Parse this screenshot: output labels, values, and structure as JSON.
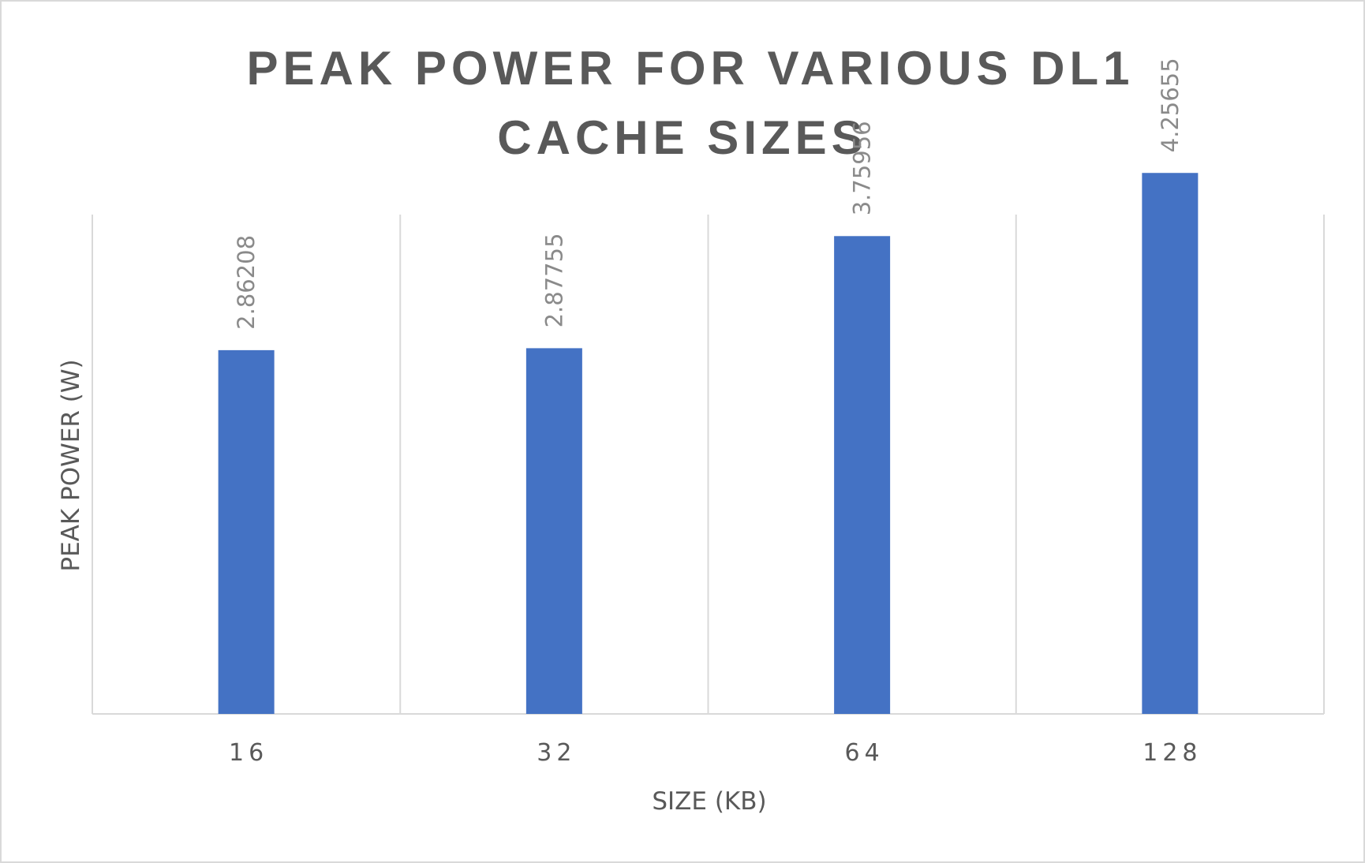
{
  "chart_data": {
    "type": "bar",
    "title_lines": [
      "PEAK POWER FOR VARIOUS DL1",
      "CACHE SIZES"
    ],
    "categories": [
      "16",
      "32",
      "64",
      "128"
    ],
    "values": [
      2.86208,
      2.87755,
      3.75956,
      4.25655
    ],
    "data_labels": [
      "2.86208",
      "2.87755",
      "3.75956",
      "4.25655"
    ],
    "xlabel": "SIZE (KB)",
    "ylabel": "PEAK POWER (W)",
    "ylim": [
      0,
      4.5
    ],
    "grid": "vertical",
    "legend": "none",
    "bar_color": "#4472c4"
  }
}
